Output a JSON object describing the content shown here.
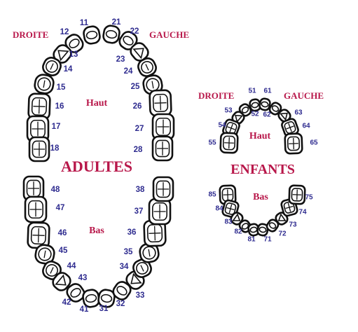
{
  "colors": {
    "label": "#b8174a",
    "number": "#2e2b8f",
    "outline": "#111111"
  },
  "adult": {
    "title": "ADULTES",
    "upper": "Haut",
    "lower": "Bas",
    "right": "DROITE",
    "left": "GAUCHE",
    "upper_numbers": [
      "11",
      "12",
      "13",
      "14",
      "15",
      "16",
      "17",
      "18",
      "21",
      "22",
      "23",
      "24",
      "25",
      "26",
      "27",
      "28"
    ],
    "lower_numbers": [
      "31",
      "32",
      "33",
      "34",
      "35",
      "36",
      "37",
      "38",
      "41",
      "42",
      "43",
      "44",
      "45",
      "46",
      "47",
      "48"
    ]
  },
  "child": {
    "title": "ENFANTS",
    "upper": "Haut",
    "lower": "Bas",
    "right": "DROITE",
    "left": "GAUCHE",
    "upper_numbers": [
      "51",
      "52",
      "53",
      "54",
      "55",
      "61",
      "62",
      "63",
      "64",
      "65"
    ],
    "lower_numbers": [
      "71",
      "72",
      "73",
      "74",
      "75",
      "81",
      "82",
      "83",
      "84",
      "85"
    ]
  }
}
